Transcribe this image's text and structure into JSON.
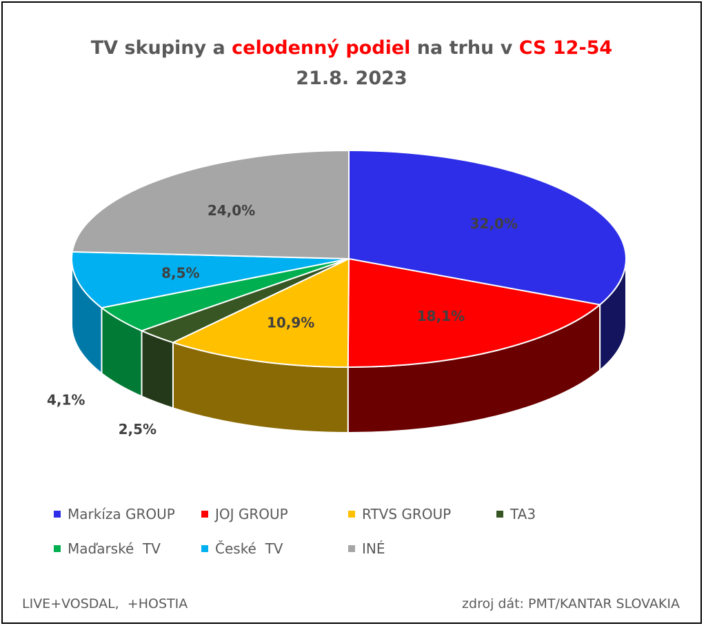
{
  "title": {
    "line1_a": "TV skupiny a ",
    "line1_b": "celodenný podiel",
    "line1_c": " na trhu v ",
    "line1_d": "CS 12-54",
    "line2": "21.8. 2023"
  },
  "chart_data": {
    "type": "pie",
    "title": "TV skupiny a celodenný podiel na trhu v CS 12-54 21.8. 2023",
    "legend_position": "bottom",
    "slices": [
      {
        "label": "Markíza GROUP",
        "value": 32.0,
        "display": "32,0%",
        "color": "#2e2ee8",
        "side_color": "#13135e"
      },
      {
        "label": "JOJ GROUP",
        "value": 18.1,
        "display": "18,1%",
        "color": "#ff0000",
        "side_color": "#6b0000"
      },
      {
        "label": "RTVS GROUP",
        "value": 10.9,
        "display": "10,9%",
        "color": "#ffc000",
        "side_color": "#8a6a05"
      },
      {
        "label": "TA3",
        "value": 2.5,
        "display": "2,5%",
        "color": "#375623",
        "side_color": "#24391a"
      },
      {
        "label": "Maďarské  TV",
        "value": 4.1,
        "display": "4,1%",
        "color": "#00b050",
        "side_color": "#007a34"
      },
      {
        "label": "České  TV",
        "value": 8.5,
        "display": "8,5%",
        "color": "#00b0f0",
        "side_color": "#0079a8"
      },
      {
        "label": "INÉ",
        "value": 24.0,
        "display": "24,0%",
        "color": "#a6a6a6",
        "side_color": "#6e6e6e"
      }
    ]
  },
  "footer": {
    "left": "LIVE+VOSDAL,  +HOSTIA",
    "right": "zdroj dát: PMT/KANTAR SLOVAKIA"
  }
}
